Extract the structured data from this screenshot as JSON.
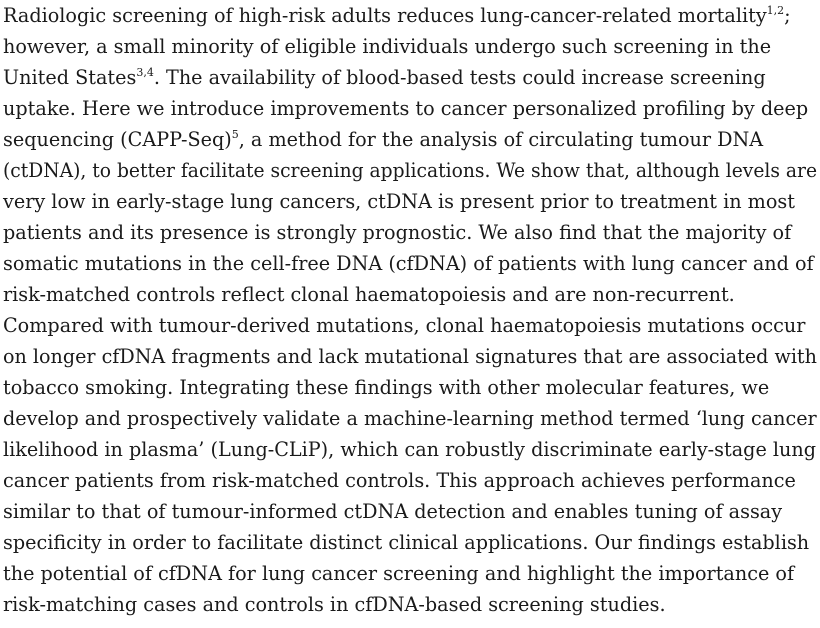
{
  "abstract": {
    "lines": [
      {
        "text": "Radiologic screening of high-risk adults reduces lung-cancer-related mortality",
        "sup": "1,2",
        "after": ";"
      },
      {
        "text": "however, a small minority of eligible individuals undergo such screening in the"
      },
      {
        "text": "United States",
        "sup": "3,4",
        "after": ". The availability of blood-based tests could increase screening"
      },
      {
        "text": "uptake. Here we introduce improvements to cancer personalized profiling by deep"
      },
      {
        "text": "sequencing (CAPP-Seq)",
        "sup": "5",
        "after": ", a method for the analysis of circulating tumour DNA"
      },
      {
        "text": "(ctDNA), to better facilitate screening applications. We show that, although levels are"
      },
      {
        "text": "very low in early-stage lung cancers, ctDNA is present prior to treatment in most"
      },
      {
        "text": "patients and its presence is strongly prognostic. We also find that the majority of"
      },
      {
        "text": "somatic mutations in the cell-free DNA (cfDNA) of patients with lung cancer and of"
      },
      {
        "text": "risk-matched controls reflect clonal haematopoiesis and are non-recurrent."
      },
      {
        "text": "Compared with tumour-derived mutations, clonal haematopoiesis mutations occur"
      },
      {
        "text": "on longer cfDNA fragments and lack mutational signatures that are associated with"
      },
      {
        "text": "tobacco smoking. Integrating these findings with other molecular features, we"
      },
      {
        "text": "develop and prospectively validate a machine-learning method termed ‘lung cancer"
      },
      {
        "text": "likelihood in plasma’ (Lung-CLiP), which can robustly discriminate early-stage lung"
      },
      {
        "text": "cancer patients from risk-matched controls. This approach achieves performance"
      },
      {
        "text": "similar to that of tumour-informed ctDNA detection and enables tuning of assay"
      },
      {
        "text": "specificity in order to facilitate distinct clinical applications. Our findings establish"
      },
      {
        "text": "the potential of cfDNA for lung cancer screening and highlight the importance of"
      },
      {
        "text": "risk-matching cases and controls in cfDNA-based screening studies."
      }
    ]
  }
}
